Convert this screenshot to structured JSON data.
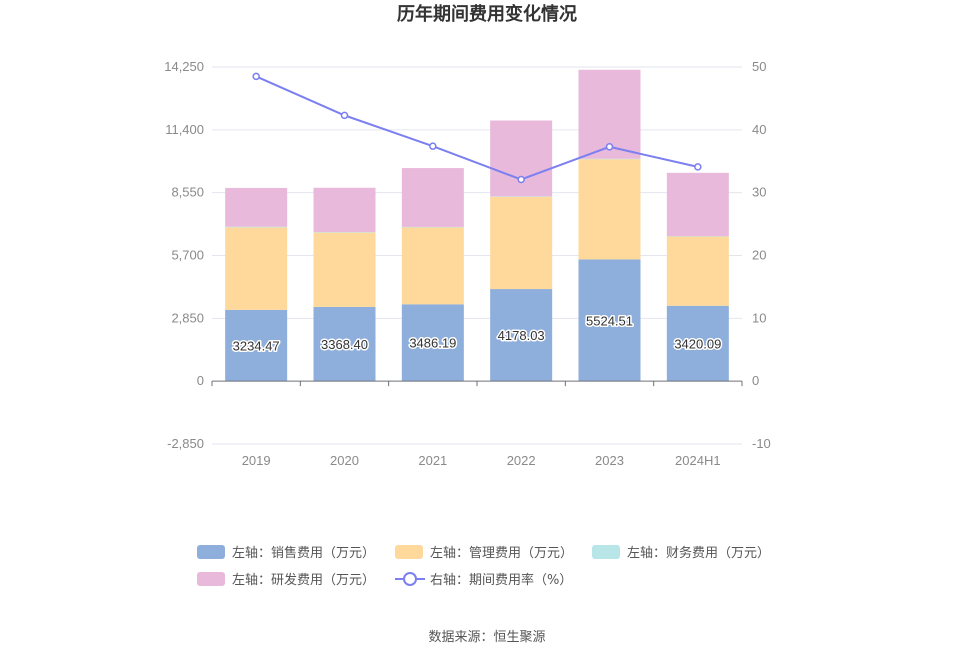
{
  "chart_data": {
    "type": "bar",
    "title": "历年期间费用变化情况",
    "categories": [
      "2019",
      "2020",
      "2021",
      "2022",
      "2023",
      "2024H1"
    ],
    "stacked": true,
    "series": [
      {
        "name": "左轴：销售费用（万元）",
        "axis": "left",
        "color": "#8eaedb",
        "values": [
          3234.47,
          3368.4,
          3486.19,
          4178.03,
          5524.51,
          3420.09
        ],
        "labels": [
          "3234.47",
          "3368.40",
          "3486.19",
          "4178.03",
          "5524.51",
          "3420.09"
        ]
      },
      {
        "name": "左轴：管理费用（万元）",
        "axis": "left",
        "color": "#fed99b",
        "values": [
          3740,
          3370,
          3490,
          4190,
          4550,
          3150
        ]
      },
      {
        "name": "左轴：财务费用（万元）",
        "axis": "left",
        "color": "#b8e6e8",
        "values": [
          30,
          25,
          20,
          15,
          10,
          10
        ]
      },
      {
        "name": "左轴：研发费用（万元）",
        "axis": "left",
        "color": "#e8b9da",
        "values": [
          1760,
          2010,
          2670,
          3440,
          4040,
          2870
        ]
      },
      {
        "name": "右轴：期间费用率（%）",
        "axis": "right",
        "type": "line",
        "color": "#7b7ff0",
        "values": [
          48.5,
          42.3,
          37.4,
          32.1,
          37.3,
          34.1
        ]
      }
    ],
    "left_axis": {
      "min": -2850,
      "max": 14250,
      "ticks": [
        "-2,850",
        "0",
        "2,850",
        "5,700",
        "8,550",
        "11,400",
        "14,250"
      ]
    },
    "right_axis": {
      "min": -10,
      "max": 50,
      "ticks": [
        "-10",
        "0",
        "10",
        "20",
        "30",
        "40",
        "50"
      ]
    },
    "grid": true,
    "legend_position": "bottom"
  },
  "source": "数据来源：恒生聚源"
}
